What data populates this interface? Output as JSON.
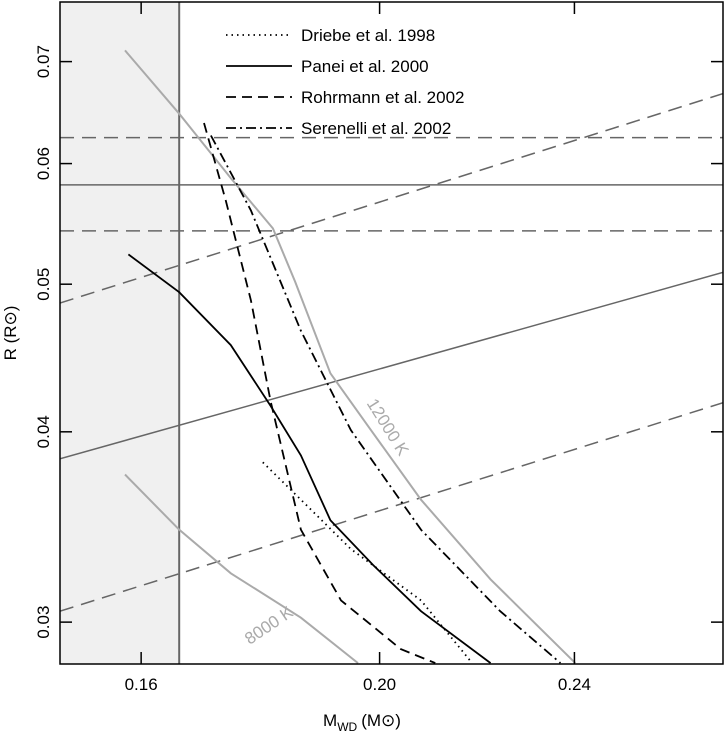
{
  "chart_data": {
    "type": "line",
    "x_label": {
      "main": "M",
      "sub": "WD",
      "unit": "(M⊙)"
    },
    "y_label": "R (R⊙)",
    "xlim": [
      0.1483,
      0.2758
    ],
    "ylim": [
      0.02816,
      0.0766
    ],
    "xscale": "log",
    "yscale": "log",
    "xticks": [
      0.16,
      {
        "value": 0.2,
        "label": "0.20"
      },
      0.24
    ],
    "yticks": [
      0.03,
      0.04,
      0.05,
      0.06,
      0.07
    ],
    "shade_x": 0.1658,
    "hlines": [
      {
        "y": 0.0581,
        "dashed": false
      },
      {
        "y": 0.0624,
        "dashed": true
      },
      {
        "y": 0.0542,
        "dashed": true
      }
    ],
    "slopes": [
      {
        "x": [
          0.1483,
          0.2758
        ],
        "y": [
          0.0384,
          0.0509
        ],
        "dashed": false
      },
      {
        "x": [
          0.1483,
          0.2758
        ],
        "y": [
          0.0486,
          0.0667
        ],
        "dashed": true
      },
      {
        "x": [
          0.1483,
          0.2758
        ],
        "y": [
          0.0305,
          0.0418
        ],
        "dashed": true
      }
    ],
    "isotherms": [
      {
        "label": "12000 K",
        "color": "#aaaaaa",
        "x": [
          0.1576,
          0.1658,
          0.174,
          0.181,
          0.1848,
          0.191,
          0.1984,
          0.2079,
          0.2219,
          0.2402
        ],
        "y": [
          0.0712,
          0.0647,
          0.0587,
          0.0544,
          0.0502,
          0.0437,
          0.0401,
          0.0361,
          0.032,
          0.0282
        ]
      },
      {
        "label": "8000 K",
        "color": "#aaaaaa",
        "x": [
          0.1576,
          0.1658,
          0.174,
          0.1858,
          0.196
        ],
        "y": [
          0.0375,
          0.0345,
          0.0323,
          0.0302,
          0.0282
        ]
      }
    ],
    "series": [
      {
        "name": "Driebe et al. 1998",
        "color": "#000000",
        "style": "dotted",
        "x": [
          0.1793,
          0.1858,
          0.1947,
          0.2079,
          0.2177
        ],
        "values": [
          0.0382,
          0.0361,
          0.0335,
          0.031,
          0.0283
        ]
      },
      {
        "name": "Panei et al. 2000",
        "color": "#000000",
        "style": "solid",
        "x": [
          0.1581,
          0.1658,
          0.174,
          0.1806,
          0.1858,
          0.191,
          0.1988,
          0.2079,
          0.2219
        ],
        "values": [
          0.0523,
          0.0494,
          0.0456,
          0.0416,
          0.0386,
          0.035,
          0.0327,
          0.0305,
          0.0282
        ]
      },
      {
        "name": "Rohrmann et al. 2002",
        "color": "#000000",
        "style": "dashed",
        "x": [
          0.1697,
          0.1732,
          0.1773,
          0.1806,
          0.1858,
          0.1929,
          0.204,
          0.2107
        ],
        "values": [
          0.0638,
          0.0567,
          0.0488,
          0.0419,
          0.0345,
          0.031,
          0.0288,
          0.0282
        ]
      },
      {
        "name": "Serenelli et al. 2002",
        "color": "#000000",
        "style": "dashdot",
        "x": [
          0.1708,
          0.1773,
          0.1858,
          0.1947,
          0.2079,
          0.2239,
          0.2369
        ],
        "values": [
          0.0626,
          0.0559,
          0.0466,
          0.0401,
          0.0345,
          0.0305,
          0.0282
        ]
      }
    ]
  }
}
